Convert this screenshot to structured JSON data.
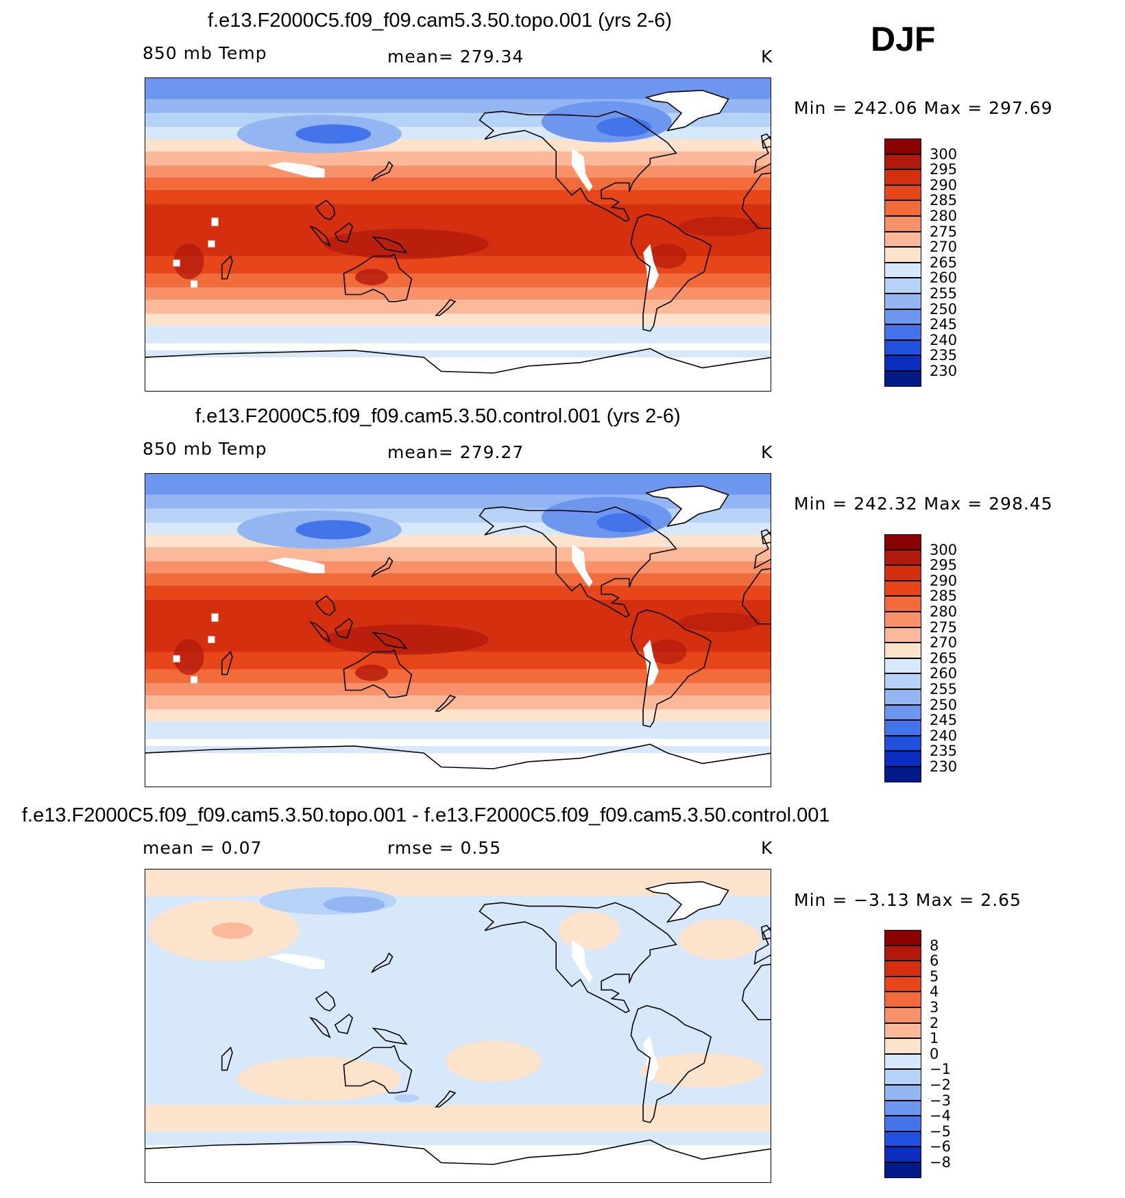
{
  "season": "DJF",
  "panels": [
    {
      "title": "f.e13.F2000C5.f09_f09.cam5.3.50.topo.001 (yrs 2-6)",
      "left_label": "850 mb Temp",
      "center_label": "mean=  279.34",
      "units": "K",
      "minmax": "Min  =  242.06  Max  =  297.69"
    },
    {
      "title": "f.e13.F2000C5.f09_f09.cam5.3.50.control.001 (yrs 2-6)",
      "left_label": "850 mb Temp",
      "center_label": "mean=  279.27",
      "units": "K",
      "minmax": "Min  =  242.32  Max  =  298.45"
    },
    {
      "title": "f.e13.F2000C5.f09_f09.cam5.3.50.topo.001 - f.e13.F2000C5.f09_f09.cam5.3.50.control.001",
      "left_label": "mean =     0.07",
      "center_label": "rmse =     0.55",
      "units": "K",
      "minmax": "Min  =   −3.13  Max  =     2.65"
    }
  ],
  "colorbars": {
    "abs": {
      "labels": [
        "300",
        "295",
        "290",
        "285",
        "280",
        "275",
        "270",
        "265",
        "260",
        "255",
        "250",
        "245",
        "240",
        "235",
        "230"
      ],
      "colors": [
        "#8b0000",
        "#b2190d",
        "#d42f0e",
        "#e6461a",
        "#f26b3a",
        "#f8906a",
        "#fcb99a",
        "#fde2cc",
        "#d6e8fa",
        "#b7d2f7",
        "#93b6f3",
        "#6d97ef",
        "#4474ea",
        "#2150df",
        "#0a2fc0",
        "#001a8a"
      ]
    },
    "diff": {
      "labels": [
        "8",
        "6",
        "5",
        "4",
        "3",
        "2",
        "1",
        "0",
        "−1",
        "−2",
        "−3",
        "−4",
        "−5",
        "−6",
        "−8"
      ],
      "colors": [
        "#8b0000",
        "#b2190d",
        "#d42f0e",
        "#e6461a",
        "#f26b3a",
        "#f8906a",
        "#fcb99a",
        "#fde2cc",
        "#d6e8fa",
        "#b7d2f7",
        "#93b6f3",
        "#6d97ef",
        "#4474ea",
        "#2150df",
        "#0a2fc0",
        "#001a8a"
      ]
    }
  },
  "field_colors": {
    "ice": "#ffffff",
    "ocean_warm": "#e6461a",
    "ocean_warmest": "#d42f0e",
    "hot_land": "#b2190d"
  }
}
